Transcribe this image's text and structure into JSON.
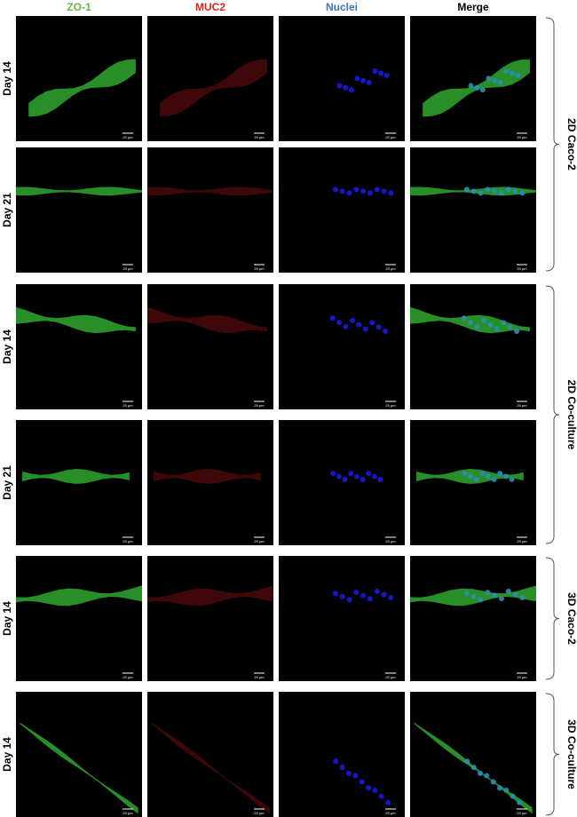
{
  "header": {
    "columns": [
      "ZO-1",
      "MUC2",
      "Nuclei",
      "Merge"
    ]
  },
  "scale_bar": "20 µm",
  "groups": [
    {
      "label": "2D Caco-2",
      "rows": [
        "Day 14",
        "Day 21"
      ]
    },
    {
      "label": "2D Co-culture",
      "rows": [
        "Day 14",
        "Day 21"
      ]
    },
    {
      "label": "3D Caco-2",
      "rows": [
        "Day 14"
      ]
    },
    {
      "label": "3D Co-culture",
      "rows": [
        "Day 14"
      ]
    }
  ]
}
